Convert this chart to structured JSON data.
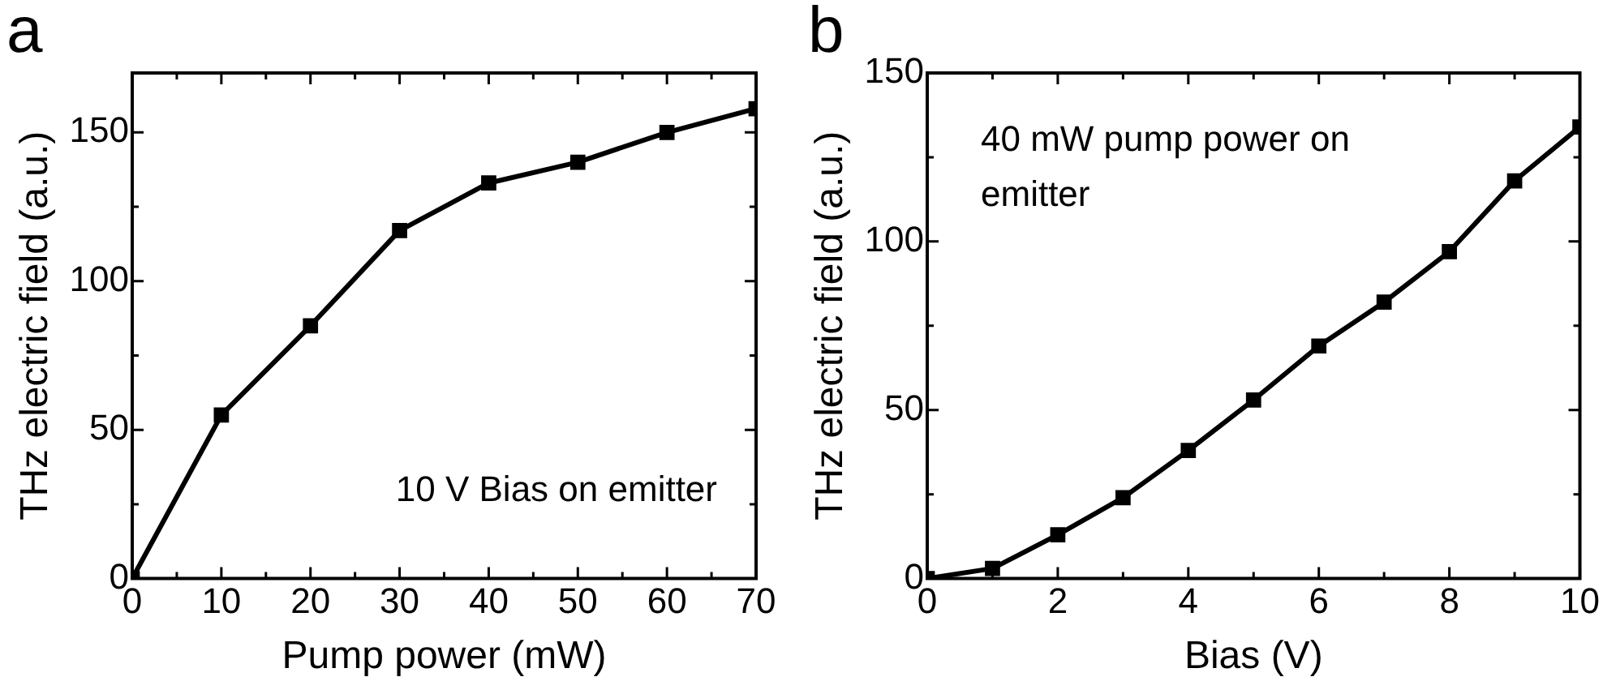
{
  "chart_data": [
    {
      "type": "line",
      "title": "a",
      "xlabel": "Pump power (mW)",
      "ylabel": "THz electric field (a.u.)",
      "annotations": [
        "10 V Bias on emitter"
      ],
      "x": [
        0,
        10,
        20,
        30,
        40,
        50,
        60,
        70
      ],
      "series": [
        {
          "color": "#000000",
          "values": [
            0,
            55,
            85,
            117,
            133,
            140,
            150,
            158
          ]
        }
      ],
      "xlim": [
        0,
        70
      ],
      "xticks": [
        0,
        {
          "value": 5,
          "label": null
        },
        10,
        {
          "value": 15,
          "label": null
        },
        20,
        {
          "value": 25,
          "label": null
        },
        30,
        {
          "value": 35,
          "label": null
        },
        40,
        {
          "value": 45,
          "label": null
        },
        50,
        {
          "value": 55,
          "label": null
        },
        60,
        {
          "value": 65,
          "label": null
        },
        70
      ],
      "ylim": [
        0,
        170
      ],
      "yticks": [
        0,
        {
          "value": 25,
          "label": null
        },
        50,
        {
          "value": 75,
          "label": null
        },
        100,
        {
          "value": 125,
          "label": null
        },
        150
      ],
      "grid": false,
      "legend": false,
      "marker": "square",
      "line_style": "solid"
    },
    {
      "type": "line",
      "title": "b",
      "xlabel": "Bias (V)",
      "ylabel": "THz electric field (a.u.)",
      "annotations": [
        "40 mW pump power on emitter"
      ],
      "x": [
        0,
        1,
        2,
        3,
        4,
        5,
        6,
        7,
        8,
        9,
        10
      ],
      "series": [
        {
          "color": "#000000",
          "values": [
            0,
            3,
            13,
            24,
            38,
            53,
            69,
            82,
            97,
            118,
            134
          ]
        }
      ],
      "xlim": [
        0,
        10
      ],
      "xticks": [
        0,
        {
          "value": 1,
          "label": null
        },
        2,
        {
          "value": 3,
          "label": null
        },
        4,
        {
          "value": 5,
          "label": null
        },
        6,
        {
          "value": 7,
          "label": null
        },
        8,
        {
          "value": 9,
          "label": null
        },
        10
      ],
      "ylim": [
        0,
        150
      ],
      "yticks": [
        0,
        {
          "value": 25,
          "label": null
        },
        50,
        {
          "value": 75,
          "label": null
        },
        100,
        {
          "value": 125,
          "label": null
        },
        150
      ],
      "grid": false,
      "legend": false,
      "marker": "square",
      "line_style": "solid"
    }
  ]
}
